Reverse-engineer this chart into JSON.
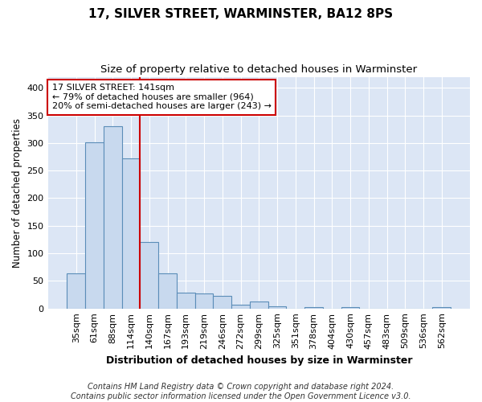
{
  "title": "17, SILVER STREET, WARMINSTER, BA12 8PS",
  "subtitle": "Size of property relative to detached houses in Warminster",
  "xlabel": "Distribution of detached houses by size in Warminster",
  "ylabel": "Number of detached properties",
  "categories": [
    "35sqm",
    "61sqm",
    "88sqm",
    "114sqm",
    "140sqm",
    "167sqm",
    "193sqm",
    "219sqm",
    "246sqm",
    "272sqm",
    "299sqm",
    "325sqm",
    "351sqm",
    "378sqm",
    "404sqm",
    "430sqm",
    "457sqm",
    "483sqm",
    "509sqm",
    "536sqm",
    "562sqm"
  ],
  "values": [
    63,
    302,
    330,
    272,
    120,
    63,
    28,
    27,
    23,
    7,
    12,
    4,
    0,
    3,
    0,
    2,
    0,
    0,
    0,
    0,
    2
  ],
  "bar_color": "#c8d9ee",
  "bar_edge_color": "#5b8db8",
  "vline_x": 3.5,
  "vline_color": "#cc0000",
  "annotation_text": "17 SILVER STREET: 141sqm\n← 79% of detached houses are smaller (964)\n20% of semi-detached houses are larger (243) →",
  "annotation_box_facecolor": "#ffffff",
  "annotation_box_edgecolor": "#cc0000",
  "ylim": [
    0,
    420
  ],
  "yticks": [
    0,
    50,
    100,
    150,
    200,
    250,
    300,
    350,
    400
  ],
  "fig_background_color": "#ffffff",
  "plot_background_color": "#dce6f5",
  "grid_color": "#ffffff",
  "footer_text": "Contains HM Land Registry data © Crown copyright and database right 2024.\nContains public sector information licensed under the Open Government Licence v3.0.",
  "title_fontsize": 11,
  "subtitle_fontsize": 9.5,
  "xlabel_fontsize": 9,
  "ylabel_fontsize": 8.5,
  "tick_fontsize": 8,
  "annotation_fontsize": 8,
  "footer_fontsize": 7
}
